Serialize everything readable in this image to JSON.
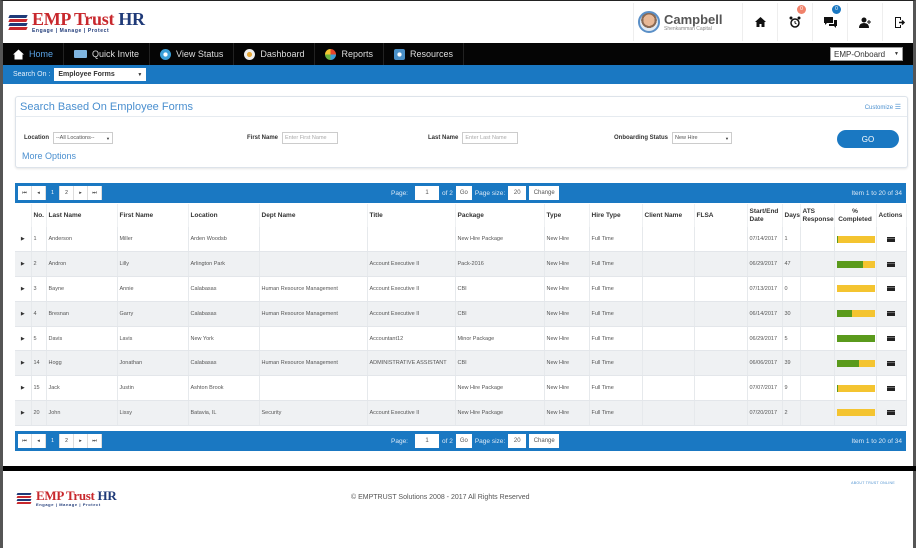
{
  "app": {
    "logo_title": "EMP Trust",
    "logo_title_hr": "HR",
    "logo_tagline": "Engage | Manage | Protect"
  },
  "user": {
    "name": "Campbell",
    "company": "Shenkamman Capital"
  },
  "header_icons": [
    {
      "name": "home-icon",
      "glyph": "⌂"
    },
    {
      "name": "alarm-icon",
      "glyph": "⏰",
      "badge": "0",
      "badge_color": "#f0826b"
    },
    {
      "name": "chat-icon",
      "glyph": "💬",
      "badge": "0",
      "badge_color": "#1a78c2"
    },
    {
      "name": "users-icon",
      "glyph": "👤"
    },
    {
      "name": "logout-icon",
      "glyph": "⇥"
    }
  ],
  "nav": {
    "items": [
      {
        "label": "Home",
        "icon": "home-icon",
        "active": true
      },
      {
        "label": "Quick Invite",
        "icon": "mail-icon"
      },
      {
        "label": "View Status",
        "icon": "status-icon"
      },
      {
        "label": "Dashboard",
        "icon": "dashboard-icon"
      },
      {
        "label": "Reports",
        "icon": "reports-icon"
      },
      {
        "label": "Resources",
        "icon": "resources-icon"
      }
    ],
    "module_select": "EMP-Onboard"
  },
  "search_on": {
    "label": "Search On :",
    "value": "Employee Forms"
  },
  "search_panel": {
    "title": "Search Based On Employee Forms",
    "customize": "Customize",
    "location_label": "Location",
    "location_value": "--All Locations--",
    "first_name_label": "First Name",
    "first_name_placeholder": "Enter First Name",
    "last_name_label": "Last Name",
    "last_name_placeholder": "Enter Last Name",
    "status_label": "Onboarding Status",
    "status_value": "New Hire",
    "more_options": "More Options",
    "go": "GO"
  },
  "pager": {
    "first": "⏮",
    "prev": "◂",
    "pages": [
      "1",
      "2"
    ],
    "next": "▸",
    "last": "⏭",
    "page_label": "Page:",
    "page_value": "1",
    "of_label": "of 2",
    "go": "Go",
    "size_label": "Page size:",
    "size_value": "20",
    "change": "Change",
    "info": "Item 1 to 20 of 34"
  },
  "table": {
    "headers": [
      "",
      "No.",
      "Last Name",
      "First Name",
      "Location",
      "Dept Name",
      "Title",
      "Package",
      "Type",
      "Hire Type",
      "Client Name",
      "FLSA",
      "Start/End Date",
      "Days",
      "ATS Response",
      "% Completed",
      "Actions"
    ],
    "rows": [
      {
        "no": "1",
        "last": "Anderson",
        "first": "Miller",
        "location": "Arden Woodsb",
        "dept": "",
        "title": "",
        "package": "New Hire Package",
        "type": "New Hire",
        "hire_type": "Full Time",
        "client": "",
        "flsa": "",
        "date": "07/14/2017",
        "days": "1",
        "ats": "",
        "pct": 5
      },
      {
        "no": "2",
        "last": "Andron",
        "first": "Lilly",
        "location": "Arlington Park",
        "dept": "",
        "title": "Account Executive II",
        "package": "Pack-2016",
        "type": "New Hire",
        "hire_type": "Full Time",
        "client": "",
        "flsa": "",
        "date": "06/29/2017",
        "days": "47",
        "ats": "",
        "pct": 70
      },
      {
        "no": "3",
        "last": "Bayne",
        "first": "Annie",
        "location": "Calabasas",
        "dept": "Human Resource Management",
        "title": "Account Executive II",
        "package": "CBI",
        "type": "New Hire",
        "hire_type": "Full Time",
        "client": "",
        "flsa": "",
        "date": "07/13/2017",
        "days": "0",
        "ats": "",
        "pct": 0
      },
      {
        "no": "4",
        "last": "Bresnan",
        "first": "Garry",
        "location": "Calabasas",
        "dept": "Human Resource Management",
        "title": "Account Executive II",
        "package": "CBI",
        "type": "New Hire",
        "hire_type": "Full Time",
        "client": "",
        "flsa": "",
        "date": "06/14/2017",
        "days": "30",
        "ats": "",
        "pct": 40
      },
      {
        "no": "5",
        "last": "Davis",
        "first": "Lavis",
        "location": "New York",
        "dept": "",
        "title": "Accountant12",
        "package": "Minor Package",
        "type": "New Hire",
        "hire_type": "Full Time",
        "client": "",
        "flsa": "",
        "date": "06/29/2017",
        "days": "5",
        "ats": "",
        "pct": 100
      },
      {
        "no": "14",
        "last": "Hogg",
        "first": "Jonathan",
        "location": "Calabasas",
        "dept": "Human Resource Management",
        "title": "ADMINISTRATIVE ASSISTANT",
        "package": "CBI",
        "type": "New Hire",
        "hire_type": "Full Time",
        "client": "",
        "flsa": "",
        "date": "06/06/2017",
        "days": "39",
        "ats": "",
        "pct": 60
      },
      {
        "no": "15",
        "last": "Jack",
        "first": "Justin",
        "location": "Ashton Brook",
        "dept": "",
        "title": "",
        "package": "New Hire Package",
        "type": "New Hire",
        "hire_type": "Full Time",
        "client": "",
        "flsa": "",
        "date": "07/07/2017",
        "days": "9",
        "ats": "",
        "pct": 2
      },
      {
        "no": "20",
        "last": "John",
        "first": "Lissy",
        "location": "Batavia, IL",
        "dept": "Security",
        "title": "Account Executive II",
        "package": "New Hire Package",
        "type": "New Hire",
        "hire_type": "Full Time",
        "client": "",
        "flsa": "",
        "date": "07/20/2017",
        "days": "2",
        "ats": "",
        "pct": 0
      }
    ]
  },
  "footer": {
    "copyright": "© EMPTRUST Solutions 2008 - 2017 All Rights Reserved",
    "link": "ABOUT TRUST ONLINE"
  },
  "colors": {
    "primary_blue": "#1a78c2",
    "nav_bg": "#050505",
    "progress_done": "#5a9a1c",
    "progress_remaining": "#f4c430",
    "logo_red": "#c8282d",
    "logo_navy": "#1f3a78"
  }
}
